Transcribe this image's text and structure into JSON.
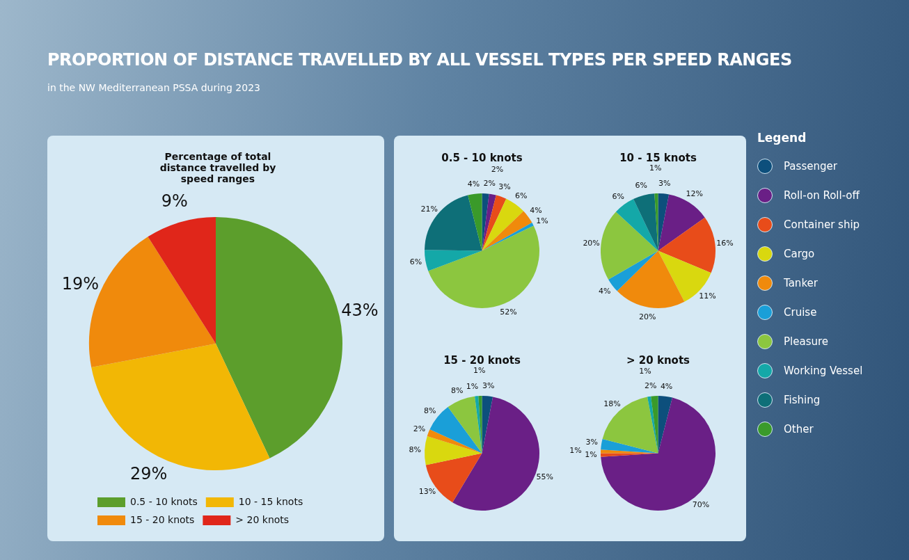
{
  "chart_data": [
    {
      "type": "pie",
      "title": "PROPORTION OF DISTANCE TRAVELLED BY ALL VESSEL TYPES PER SPEED RANGES",
      "subtitle": "in the NW Mediterranean PSSA during 2023",
      "annotations": [
        "Percentage of total distance travelled by speed ranges"
      ],
      "categories": [
        "0.5 - 10 knots",
        "10 - 15 knots",
        "15 - 20 knots",
        "> 20 knots"
      ],
      "values": [
        43,
        29,
        19,
        9
      ],
      "value_labels": [
        "43%",
        "29%",
        "19%",
        "9%"
      ],
      "colors": [
        "#5c9e2c",
        "#f2b705",
        "#f08a0c",
        "#e0261a"
      ],
      "legend": "bottom left"
    },
    {
      "type": "pie",
      "title": "0.5 - 10 knots",
      "legend_title": "Legend",
      "legend": "right",
      "categories": [
        "Passenger",
        "Roll-on Roll-off",
        "Container ship",
        "Cargo",
        "Tanker",
        "Cruise",
        "Pleasure",
        "Working Vessel",
        "Fishing",
        "Other"
      ],
      "values": [
        2,
        2,
        3,
        6,
        4,
        1,
        52,
        6,
        21,
        4
      ],
      "value_labels": [
        "2%",
        "2%",
        "3%",
        "6%",
        "4%",
        "1%",
        "52%",
        "6%",
        "21%",
        "4%"
      ],
      "colors": [
        "#0d4f7c",
        "#6a1f86",
        "#e84c1a",
        "#d9d80f",
        "#f08a0c",
        "#1a9fd8",
        "#8cc63f",
        "#14a8a8",
        "#0e6f78",
        "#3a9a2a"
      ]
    },
    {
      "type": "pie",
      "title": "10 - 15 knots",
      "values": [
        3,
        12,
        16,
        11,
        20,
        4,
        20,
        6,
        6,
        1
      ],
      "value_labels": [
        "3%",
        "12%",
        "16%",
        "11%",
        "20%",
        "4%",
        "20%",
        "6%",
        "6%",
        "1%"
      ],
      "colors": [
        "#0d4f7c",
        "#6a1f86",
        "#e84c1a",
        "#d9d80f",
        "#f08a0c",
        "#1a9fd8",
        "#8cc63f",
        "#14a8a8",
        "#0e6f78",
        "#3a9a2a"
      ]
    },
    {
      "type": "pie",
      "title": "15 - 20 knots",
      "values": [
        3,
        55,
        13,
        8,
        2,
        8,
        8,
        1,
        null,
        1
      ],
      "value_labels": [
        "3%",
        "55%",
        "13%",
        "8%",
        "2%",
        "8%",
        "8%",
        "1%",
        null,
        "1%"
      ],
      "colors": [
        "#0d4f7c",
        "#6a1f86",
        "#e84c1a",
        "#d9d80f",
        "#f08a0c",
        "#1a9fd8",
        "#8cc63f",
        "#14a8a8",
        "#0e6f78",
        "#3a9a2a"
      ]
    },
    {
      "type": "pie",
      "title": "> 20 knots",
      "values": [
        4,
        70,
        1,
        null,
        1,
        3,
        18,
        1,
        null,
        2
      ],
      "value_labels": [
        "4%",
        "70%",
        "1%",
        null,
        "1%",
        "3%",
        "18%",
        "1%",
        null,
        "2%"
      ],
      "colors": [
        "#0d4f7c",
        "#6a1f86",
        "#e84c1a",
        "#d9d80f",
        "#f08a0c",
        "#1a9fd8",
        "#8cc63f",
        "#14a8a8",
        "#0e6f78",
        "#3a9a2a"
      ]
    }
  ]
}
